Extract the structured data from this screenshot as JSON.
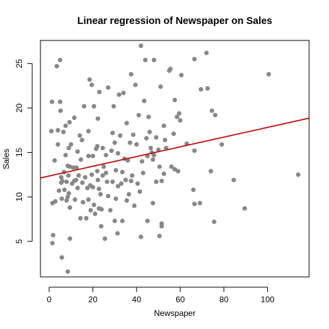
{
  "chart_data": {
    "type": "scatter",
    "title": "Linear regression of Newspaper on Sales",
    "xlabel": "Newspaper",
    "ylabel": "Sales",
    "xlim": [
      -4,
      119
    ],
    "ylim": [
      1.0,
      27.6
    ],
    "x_ticks": [
      0,
      20,
      40,
      60,
      80,
      100
    ],
    "y_ticks": [
      5,
      10,
      15,
      20,
      25
    ],
    "grid": false,
    "legend": "none",
    "point_color": "#888888",
    "line_color": "#bb1111",
    "regression": {
      "intercept": 12.35,
      "slope": 0.0547
    },
    "points": [
      [
        1.0,
        17.4
      ],
      [
        1.3,
        20.7
      ],
      [
        1.5,
        9.3
      ],
      [
        1.5,
        4.8
      ],
      [
        1.8,
        5.7
      ],
      [
        2.5,
        14.1
      ],
      [
        2.8,
        9.5
      ],
      [
        3.5,
        24.7
      ],
      [
        4.0,
        15.9
      ],
      [
        4.0,
        17.5
      ],
      [
        4.5,
        10.7
      ],
      [
        5.0,
        25.4
      ],
      [
        5.0,
        20.7
      ],
      [
        5.2,
        19.7
      ],
      [
        5.5,
        12.2
      ],
      [
        5.5,
        11.6
      ],
      [
        5.8,
        9.8
      ],
      [
        5.8,
        3.2
      ],
      [
        6.0,
        11.8
      ],
      [
        6.5,
        17.3
      ],
      [
        6.8,
        12.8
      ],
      [
        7.0,
        10.8
      ],
      [
        7.5,
        14.7
      ],
      [
        7.5,
        18.0
      ],
      [
        8.0,
        9.6
      ],
      [
        8.0,
        11.7
      ],
      [
        8.5,
        10.0
      ],
      [
        8.5,
        13.5
      ],
      [
        8.5,
        1.6
      ],
      [
        8.8,
        12.4
      ],
      [
        9.0,
        15.5
      ],
      [
        9.0,
        10.4
      ],
      [
        9.3,
        18.4
      ],
      [
        9.5,
        13.4
      ],
      [
        9.5,
        8.8
      ],
      [
        9.5,
        5.3
      ],
      [
        10.0,
        15.9
      ],
      [
        10.5,
        11.5
      ],
      [
        11.0,
        13.3
      ],
      [
        11.5,
        18.9
      ],
      [
        11.5,
        11.8
      ],
      [
        11.8,
        9.7
      ],
      [
        12.3,
        11.9
      ],
      [
        12.5,
        13.3
      ],
      [
        13.0,
        15.1
      ],
      [
        13.0,
        11.0
      ],
      [
        13.5,
        12.4
      ],
      [
        14.0,
        16.9
      ],
      [
        14.3,
        7.6
      ],
      [
        14.5,
        14.2
      ],
      [
        15.0,
        16.4
      ],
      [
        15.2,
        11.6
      ],
      [
        15.5,
        9.4
      ],
      [
        16.0,
        20.2
      ],
      [
        16.5,
        12.2
      ],
      [
        17.0,
        7.6
      ],
      [
        17.5,
        11.0
      ],
      [
        18.0,
        14.6
      ],
      [
        18.0,
        9.7
      ],
      [
        18.0,
        17.4
      ],
      [
        18.5,
        23.2
      ],
      [
        18.8,
        11.3
      ],
      [
        19.0,
        8.5
      ],
      [
        19.5,
        12.5
      ],
      [
        19.5,
        22.6
      ],
      [
        20.0,
        14.6
      ],
      [
        20.0,
        11.1
      ],
      [
        20.5,
        9.1
      ],
      [
        20.5,
        20.2
      ],
      [
        21.0,
        8.1
      ],
      [
        21.5,
        15.4
      ],
      [
        22.0,
        15.7
      ],
      [
        22.0,
        12.9
      ],
      [
        22.3,
        18.8
      ],
      [
        22.3,
        11.9
      ],
      [
        22.8,
        10.9
      ],
      [
        22.8,
        8.7
      ],
      [
        23.0,
        21.8
      ],
      [
        23.5,
        10.3
      ],
      [
        23.8,
        6.7
      ],
      [
        24.0,
        8.6
      ],
      [
        24.5,
        15.5
      ],
      [
        24.5,
        12.4
      ],
      [
        25.0,
        13.4
      ],
      [
        25.5,
        5.3
      ],
      [
        26.0,
        12.7
      ],
      [
        26.0,
        14.7
      ],
      [
        26.5,
        11.7
      ],
      [
        27.0,
        10.1
      ],
      [
        27.0,
        22.3
      ],
      [
        28.0,
        8.5
      ],
      [
        28.5,
        15.2
      ],
      [
        29.0,
        17.2
      ],
      [
        29.0,
        11.7
      ],
      [
        29.5,
        20.2
      ],
      [
        30.0,
        16.1
      ],
      [
        30.0,
        7.3
      ],
      [
        30.5,
        13.0
      ],
      [
        30.5,
        9.8
      ],
      [
        31.3,
        5.9
      ],
      [
        31.5,
        14.9
      ],
      [
        31.5,
        11.2
      ],
      [
        32.0,
        21.5
      ],
      [
        32.5,
        16.9
      ],
      [
        33.0,
        11.5
      ],
      [
        33.5,
        12.8
      ],
      [
        33.5,
        7.3
      ],
      [
        34.0,
        21.7
      ],
      [
        34.5,
        14.3
      ],
      [
        35.0,
        11.9
      ],
      [
        35.5,
        18.3
      ],
      [
        35.5,
        9.6
      ],
      [
        36.0,
        14.1
      ],
      [
        36.5,
        10.3
      ],
      [
        37.0,
        16.1
      ],
      [
        37.5,
        11.8
      ],
      [
        37.5,
        23.8
      ],
      [
        38.0,
        12.4
      ],
      [
        38.5,
        17.0
      ],
      [
        39.0,
        9.0
      ],
      [
        39.5,
        22.6
      ],
      [
        40.0,
        15.9
      ],
      [
        40.5,
        11.5
      ],
      [
        41.0,
        19.2
      ],
      [
        41.5,
        10.6
      ],
      [
        42.0,
        27.0
      ],
      [
        42.0,
        5.5
      ],
      [
        42.5,
        14.0
      ],
      [
        43.0,
        12.7
      ],
      [
        43.5,
        20.8
      ],
      [
        44.0,
        25.4
      ],
      [
        44.5,
        16.6
      ],
      [
        45.0,
        14.6
      ],
      [
        45.0,
        7.3
      ],
      [
        45.5,
        19.0
      ],
      [
        46.0,
        17.3
      ],
      [
        46.5,
        15.5
      ],
      [
        47.0,
        15.0
      ],
      [
        47.5,
        14.2
      ],
      [
        47.5,
        9.3
      ],
      [
        48.0,
        25.4
      ],
      [
        48.0,
        14.7
      ],
      [
        49.0,
        11.7
      ],
      [
        49.0,
        16.7
      ],
      [
        50.0,
        15.3
      ],
      [
        50.5,
        13.4
      ],
      [
        51.0,
        22.4
      ],
      [
        52.5,
        18.0
      ],
      [
        52.5,
        12.6
      ],
      [
        53.0,
        16.4
      ],
      [
        50.5,
        5.6
      ],
      [
        51.5,
        6.7
      ],
      [
        51.5,
        11.8
      ],
      [
        51.5,
        7.0
      ],
      [
        53.5,
        15.5
      ],
      [
        55.0,
        24.2
      ],
      [
        55.5,
        24.4
      ],
      [
        56.0,
        13.4
      ],
      [
        57.0,
        17.1
      ],
      [
        57.5,
        13.1
      ],
      [
        57.5,
        20.9
      ],
      [
        58.5,
        19.0
      ],
      [
        59.0,
        12.9
      ],
      [
        59.5,
        19.4
      ],
      [
        60.0,
        18.6
      ],
      [
        60.5,
        23.7
      ],
      [
        63.0,
        16.0
      ],
      [
        66.0,
        10.8
      ],
      [
        66.5,
        25.5
      ],
      [
        66.5,
        15.2
      ],
      [
        66.5,
        9.2
      ],
      [
        69.0,
        9.3
      ],
      [
        69.5,
        22.1
      ],
      [
        72.0,
        26.2
      ],
      [
        72.5,
        22.2
      ],
      [
        74.0,
        12.9
      ],
      [
        74.5,
        19.7
      ],
      [
        75.5,
        7.2
      ],
      [
        76.0,
        19.2
      ],
      [
        79.0,
        15.9
      ],
      [
        84.5,
        11.9
      ],
      [
        89.5,
        8.7
      ],
      [
        100.5,
        23.8
      ],
      [
        114.0,
        12.5
      ]
    ]
  }
}
